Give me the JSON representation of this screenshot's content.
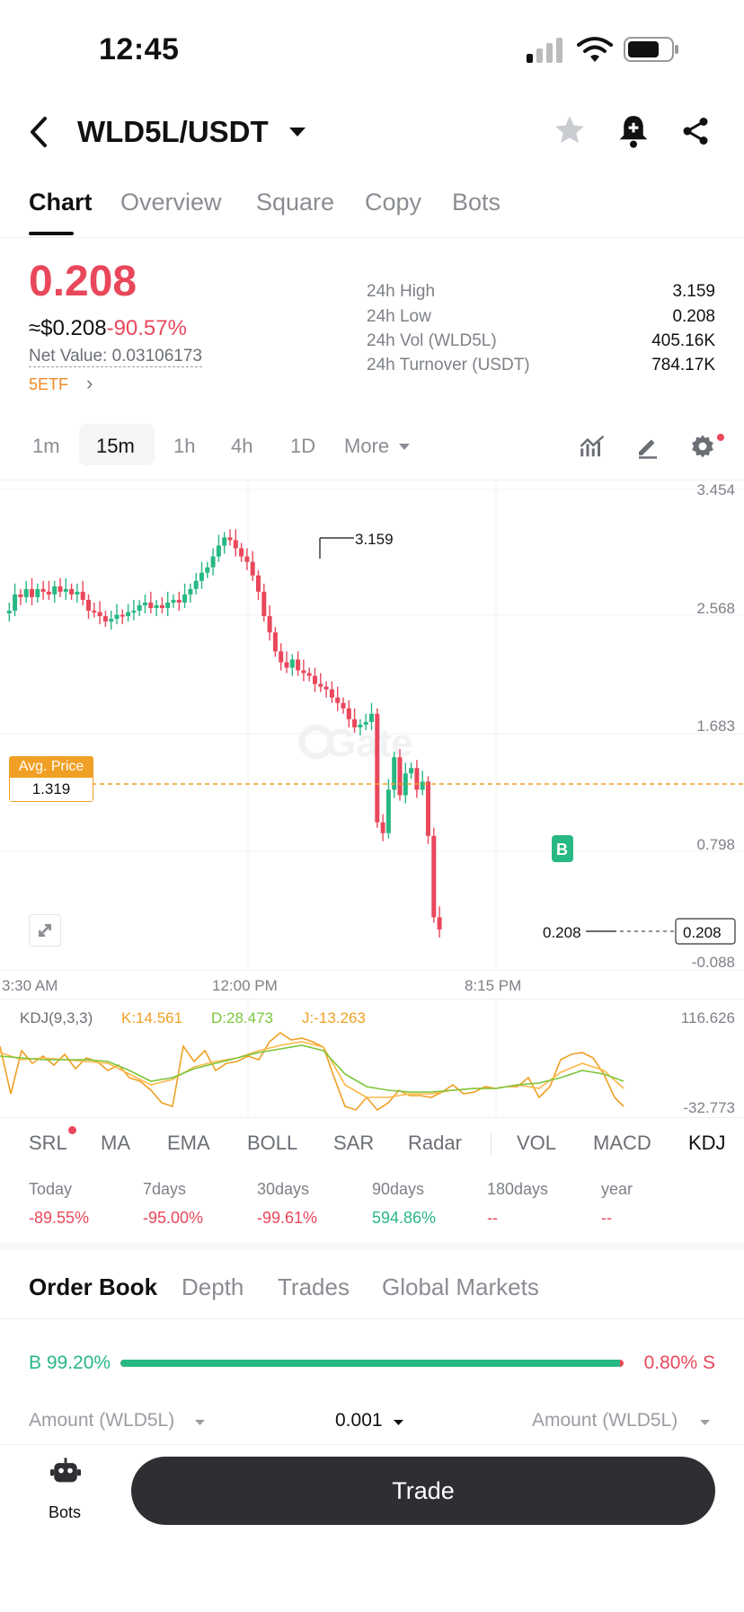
{
  "status_bar": {
    "time": "12:45"
  },
  "header": {
    "pair": "WLD5L/USDT"
  },
  "tabs": [
    "Chart",
    "Overview",
    "Square",
    "Copy",
    "Bots"
  ],
  "ticker": {
    "price": "0.208",
    "usd_price": "≈$0.208",
    "change": "-90.57%",
    "net_value": "Net Value: 0.03106173",
    "etf_tag": "5ETF",
    "stats": [
      {
        "label": "24h High",
        "value": "3.159"
      },
      {
        "label": "24h Low",
        "value": "0.208"
      },
      {
        "label": "24h Vol (WLD5L)",
        "value": "405.16K"
      },
      {
        "label": "24h Turnover (USDT)",
        "value": "784.17K"
      }
    ]
  },
  "timeframes": [
    "1m",
    "15m",
    "1h",
    "4h",
    "1D",
    "More"
  ],
  "chart": {
    "y_ticks": [
      "3.454",
      "2.568",
      "1.683",
      "0.798",
      "-0.088"
    ],
    "x_ticks": [
      "3:30 AM",
      "12:00 PM",
      "8:15 PM"
    ],
    "high_label": "3.159",
    "low_label": "0.208",
    "last_price_tag": "0.208",
    "avg_price_label": "Avg. Price",
    "avg_price_value": "1.319",
    "buy_marker": "B",
    "watermark": "Gate",
    "colors": {
      "up": "#28b883",
      "down": "#e9475b",
      "avg": "#f0a024"
    }
  },
  "kdj": {
    "title": "KDJ(9,3,3)",
    "k": "K:14.561",
    "d": "D:28.473",
    "j": "J:-13.263",
    "max": "116.626",
    "min": "-32.773"
  },
  "indicators": [
    "SRL",
    "MA",
    "EMA",
    "BOLL",
    "SAR",
    "Radar",
    "VOL",
    "MACD",
    "KDJ"
  ],
  "performance": [
    {
      "label": "Today",
      "value": "-89.55%",
      "dir": "down"
    },
    {
      "label": "7days",
      "value": "-95.00%",
      "dir": "down"
    },
    {
      "label": "30days",
      "value": "-99.61%",
      "dir": "down"
    },
    {
      "label": "90days",
      "value": "594.86%",
      "dir": "up"
    },
    {
      "label": "180days",
      "value": "--",
      "dir": "down"
    },
    {
      "label": "year",
      "value": "--",
      "dir": "down"
    }
  ],
  "orderbook": {
    "tabs": [
      "Order Book",
      "Depth",
      "Trades",
      "Global Markets"
    ],
    "buy_ratio": "B 99.20%",
    "sell_ratio": "0.80% S",
    "buy_fraction": 0.992,
    "amount_left": "Amount (WLD5L)",
    "precision": "0.001",
    "amount_right": "Amount (WLD5L)"
  },
  "bottom": {
    "bots_label": "Bots",
    "trade_label": "Trade"
  }
}
